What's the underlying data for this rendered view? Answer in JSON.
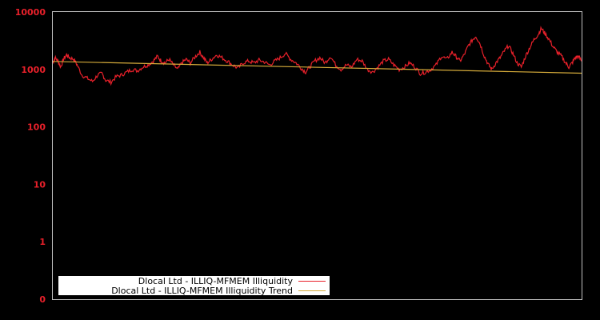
{
  "chart_data": {
    "type": "line",
    "title": "",
    "xlabel": "",
    "ylabel": "",
    "yscale": "log",
    "ylim": [
      0,
      10000
    ],
    "y_ticks": [
      "10000",
      "1000",
      "100",
      "10",
      "1",
      "0"
    ],
    "x_ticks": [],
    "grid": false,
    "legend_position": "lower-left",
    "background": "#000000",
    "axis_color": "#c0c0c0",
    "tick_label_color": "#e8202a",
    "series": [
      {
        "name": "Dlocal Ltd - ILLIQ-MFMEM Illiquidity",
        "color": "#e8202a",
        "points_xfrac_value": [
          [
            0.0,
            1300
          ],
          [
            0.004,
            1600
          ],
          [
            0.01,
            1400
          ],
          [
            0.015,
            1100
          ],
          [
            0.02,
            1500
          ],
          [
            0.026,
            1800
          ],
          [
            0.032,
            1600
          ],
          [
            0.04,
            1500
          ],
          [
            0.046,
            1200
          ],
          [
            0.055,
            800
          ],
          [
            0.065,
            700
          ],
          [
            0.075,
            620
          ],
          [
            0.085,
            800
          ],
          [
            0.093,
            850
          ],
          [
            0.1,
            650
          ],
          [
            0.11,
            600
          ],
          [
            0.12,
            750
          ],
          [
            0.13,
            800
          ],
          [
            0.14,
            900
          ],
          [
            0.15,
            1000
          ],
          [
            0.16,
            950
          ],
          [
            0.17,
            1100
          ],
          [
            0.18,
            1200
          ],
          [
            0.19,
            1400
          ],
          [
            0.198,
            1700
          ],
          [
            0.205,
            1400
          ],
          [
            0.212,
            1300
          ],
          [
            0.22,
            1500
          ],
          [
            0.228,
            1200
          ],
          [
            0.236,
            1000
          ],
          [
            0.244,
            1300
          ],
          [
            0.252,
            1500
          ],
          [
            0.26,
            1300
          ],
          [
            0.27,
            1700
          ],
          [
            0.278,
            2000
          ],
          [
            0.285,
            1600
          ],
          [
            0.292,
            1300
          ],
          [
            0.3,
            1500
          ],
          [
            0.31,
            1800
          ],
          [
            0.32,
            1600
          ],
          [
            0.33,
            1400
          ],
          [
            0.34,
            1200
          ],
          [
            0.35,
            1050
          ],
          [
            0.36,
            1300
          ],
          [
            0.37,
            1400
          ],
          [
            0.38,
            1300
          ],
          [
            0.39,
            1450
          ],
          [
            0.4,
            1350
          ],
          [
            0.41,
            1200
          ],
          [
            0.42,
            1400
          ],
          [
            0.43,
            1600
          ],
          [
            0.44,
            1900
          ],
          [
            0.45,
            1500
          ],
          [
            0.46,
            1300
          ],
          [
            0.47,
            1050
          ],
          [
            0.478,
            900
          ],
          [
            0.486,
            1100
          ],
          [
            0.495,
            1400
          ],
          [
            0.505,
            1600
          ],
          [
            0.515,
            1300
          ],
          [
            0.525,
            1700
          ],
          [
            0.535,
            1200
          ],
          [
            0.545,
            1000
          ],
          [
            0.555,
            1200
          ],
          [
            0.565,
            1100
          ],
          [
            0.575,
            1500
          ],
          [
            0.585,
            1400
          ],
          [
            0.595,
            1000
          ],
          [
            0.605,
            900
          ],
          [
            0.615,
            1100
          ],
          [
            0.625,
            1400
          ],
          [
            0.635,
            1500
          ],
          [
            0.645,
            1200
          ],
          [
            0.655,
            1000
          ],
          [
            0.665,
            1100
          ],
          [
            0.675,
            1300
          ],
          [
            0.685,
            1100
          ],
          [
            0.695,
            850
          ],
          [
            0.705,
            900
          ],
          [
            0.715,
            1000
          ],
          [
            0.725,
            1200
          ],
          [
            0.735,
            1700
          ],
          [
            0.745,
            1500
          ],
          [
            0.755,
            2000
          ],
          [
            0.762,
            1700
          ],
          [
            0.77,
            1400
          ],
          [
            0.778,
            1800
          ],
          [
            0.786,
            2600
          ],
          [
            0.794,
            3300
          ],
          [
            0.8,
            3800
          ],
          [
            0.808,
            2800
          ],
          [
            0.816,
            1700
          ],
          [
            0.824,
            1200
          ],
          [
            0.83,
            1000
          ],
          [
            0.838,
            1300
          ],
          [
            0.846,
            1600
          ],
          [
            0.854,
            2100
          ],
          [
            0.862,
            2600
          ],
          [
            0.87,
            1900
          ],
          [
            0.878,
            1300
          ],
          [
            0.886,
            1100
          ],
          [
            0.894,
            1700
          ],
          [
            0.902,
            2400
          ],
          [
            0.91,
            3300
          ],
          [
            0.918,
            4100
          ],
          [
            0.924,
            5200
          ],
          [
            0.93,
            4300
          ],
          [
            0.938,
            3400
          ],
          [
            0.946,
            2500
          ],
          [
            0.954,
            2000
          ],
          [
            0.962,
            1700
          ],
          [
            0.97,
            1300
          ],
          [
            0.976,
            1100
          ],
          [
            0.982,
            1300
          ],
          [
            0.988,
            1600
          ],
          [
            0.994,
            1700
          ],
          [
            1.0,
            1400
          ]
        ]
      },
      {
        "name": "Dlocal Ltd - ILLIQ-MFMEM Illiquidity Trend",
        "color": "#d4aa3a",
        "points_xfrac_value": [
          [
            0.0,
            1380
          ],
          [
            1.0,
            860
          ]
        ]
      }
    ]
  },
  "legend": {
    "items": [
      {
        "label": "Dlocal Ltd - ILLIQ-MFMEM Illiquidity",
        "color": "#e8202a"
      },
      {
        "label": "Dlocal Ltd - ILLIQ-MFMEM Illiquidity Trend",
        "color": "#d4aa3a"
      }
    ]
  }
}
